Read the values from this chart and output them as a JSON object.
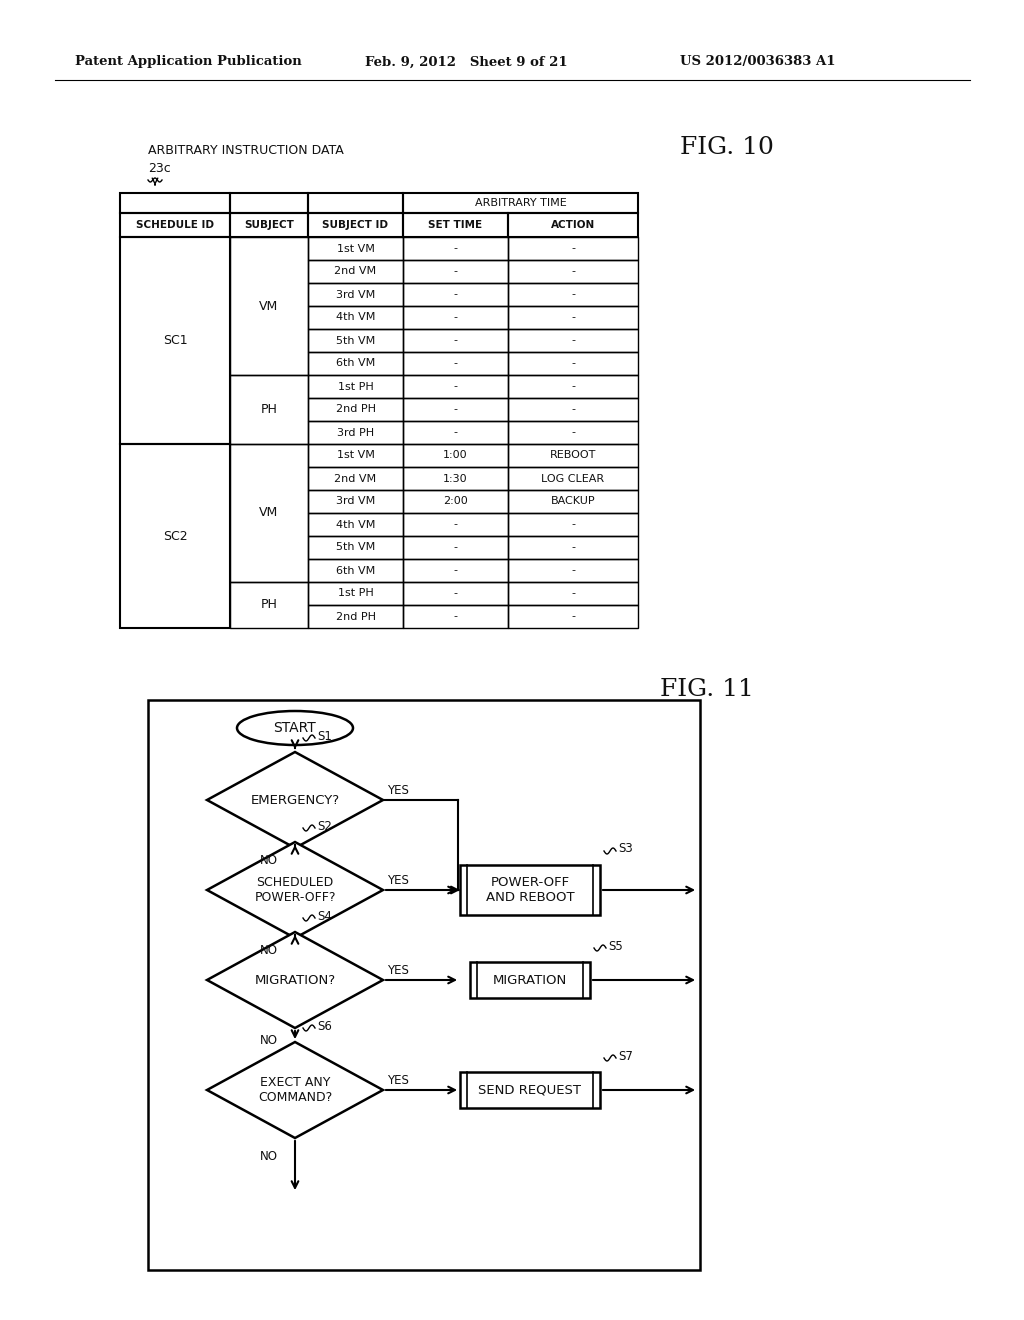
{
  "bg_color": "#ffffff",
  "header_left": "Patent Application Publication",
  "header_mid": "Feb. 9, 2012   Sheet 9 of 21",
  "header_right": "US 2012/0036383 A1",
  "fig10_label": "FIG. 10",
  "fig11_label": "FIG. 11",
  "table_title": "ARBITRARY INSTRUCTION DATA",
  "table_ref": "23c",
  "table_headers": [
    "SCHEDULE ID",
    "SUBJECT",
    "SUBJECT ID",
    "SET TIME",
    "ACTION"
  ],
  "arb_time_header": "ARBITRARY TIME",
  "table_data": [
    [
      "SC1",
      "VM",
      "1st VM",
      "-",
      "-"
    ],
    [
      "SC1",
      "VM",
      "2nd VM",
      "-",
      "-"
    ],
    [
      "SC1",
      "VM",
      "3rd VM",
      "-",
      "-"
    ],
    [
      "SC1",
      "VM",
      "4th VM",
      "-",
      "-"
    ],
    [
      "SC1",
      "VM",
      "5th VM",
      "-",
      "-"
    ],
    [
      "SC1",
      "VM",
      "6th VM",
      "-",
      "-"
    ],
    [
      "SC1",
      "PH",
      "1st PH",
      "-",
      "-"
    ],
    [
      "SC1",
      "PH",
      "2nd PH",
      "-",
      "-"
    ],
    [
      "SC1",
      "PH",
      "3rd PH",
      "-",
      "-"
    ],
    [
      "SC2",
      "VM",
      "1st VM",
      "1:00",
      "REBOOT"
    ],
    [
      "SC2",
      "VM",
      "2nd VM",
      "1:30",
      "LOG CLEAR"
    ],
    [
      "SC2",
      "VM",
      "3rd VM",
      "2:00",
      "BACKUP"
    ],
    [
      "SC2",
      "VM",
      "4th VM",
      "-",
      "-"
    ],
    [
      "SC2",
      "VM",
      "5th VM",
      "-",
      "-"
    ],
    [
      "SC2",
      "VM",
      "6th VM",
      "-",
      "-"
    ],
    [
      "SC2",
      "PH",
      "1st PH",
      "-",
      "-"
    ],
    [
      "SC2",
      "PH",
      "2nd PH",
      "-",
      "-"
    ]
  ],
  "fc_start": "START",
  "fc_s1": "S1",
  "fc_d1": "EMERGENCY?",
  "fc_s2": "S2",
  "fc_d2": "SCHEDULED\nPOWER-OFF?",
  "fc_s3": "S3",
  "fc_p3": "POWER-OFF\nAND REBOOT",
  "fc_s4": "S4",
  "fc_d4": "MIGRATION?",
  "fc_s5": "S5",
  "fc_p5": "MIGRATION",
  "fc_s6": "S6",
  "fc_d6": "EXECT ANY\nCOMMAND?",
  "fc_s7": "S7",
  "fc_p7": "SEND REQUEST",
  "yes": "YES",
  "no": "NO"
}
